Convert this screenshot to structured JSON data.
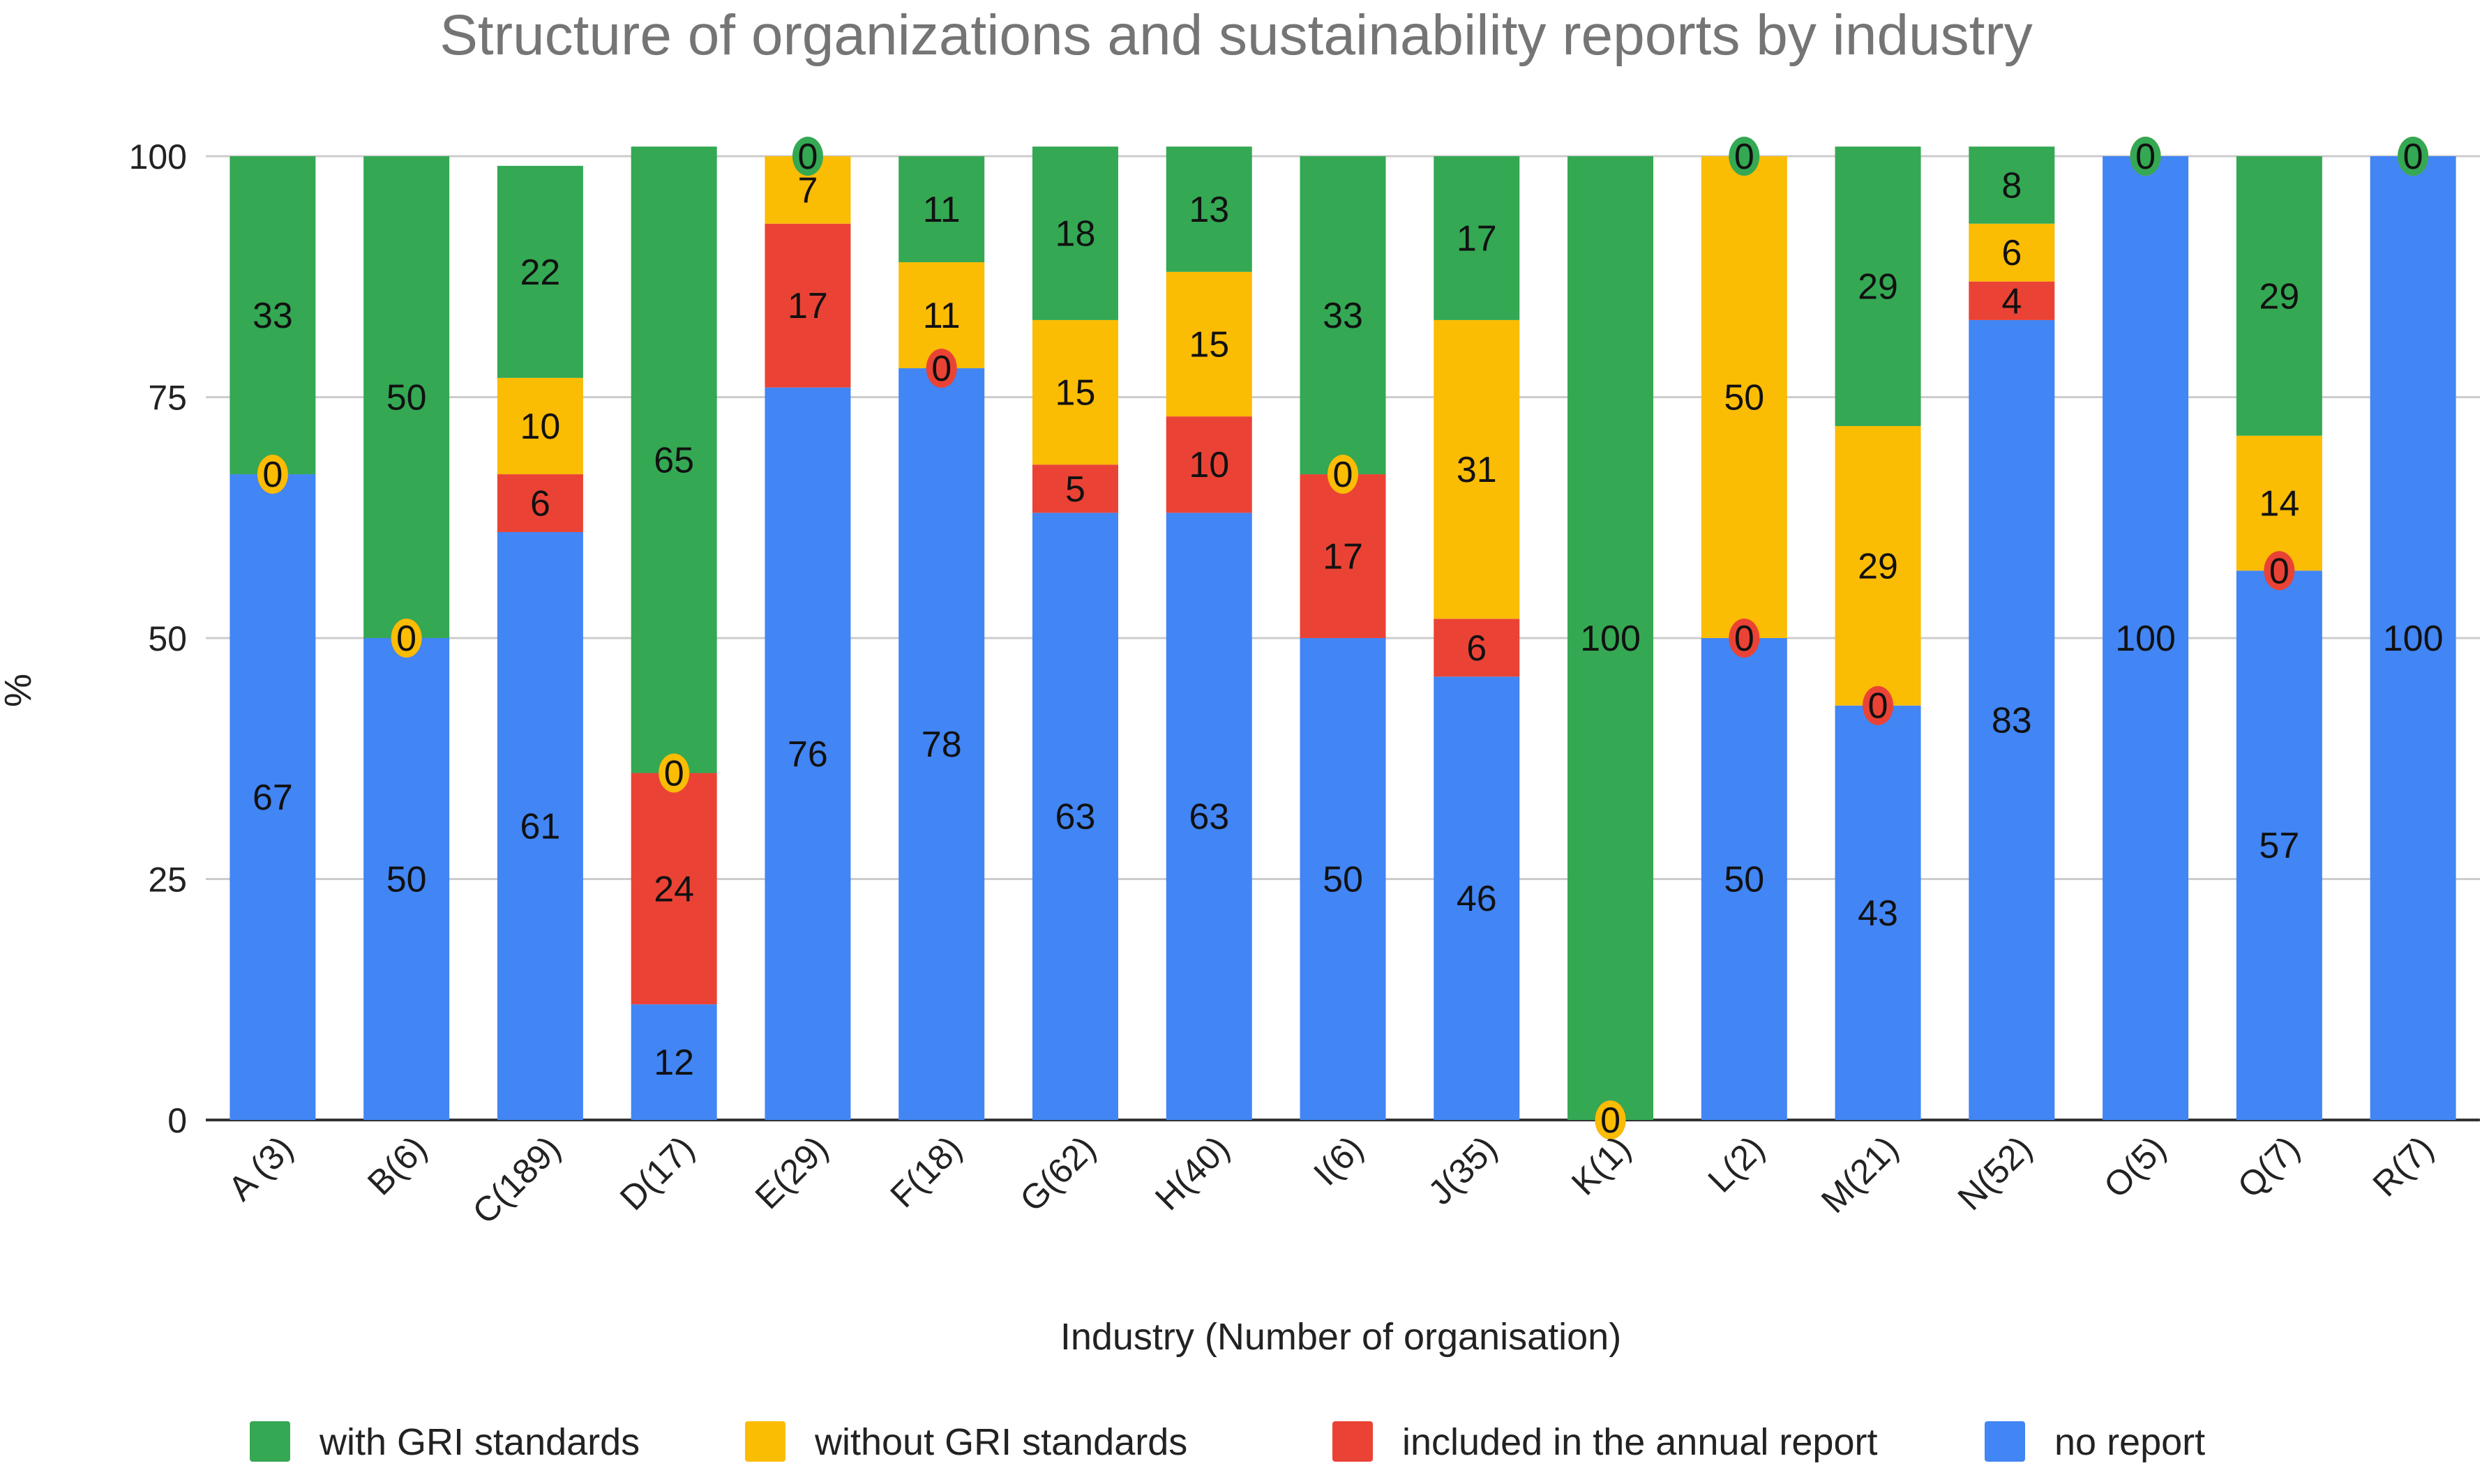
{
  "chart_data": {
    "type": "bar",
    "stacked": true,
    "title": "Structure of organizations and sustainability reports by industry",
    "xlabel": "Industry (Number of organisation)",
    "ylabel": "%",
    "ylim": [
      0,
      100
    ],
    "yticks": [
      "0",
      "25",
      "50",
      "75",
      "100"
    ],
    "grid": true,
    "legend_position": "bottom",
    "categories": [
      "A (3)",
      "B(6)",
      "C(189)",
      "D(17)",
      "E(29)",
      "F(18)",
      "G(62)",
      "H(40)",
      "I(6)",
      "J(35)",
      "K(1)",
      "L(2)",
      "M(21)",
      "N(52)",
      "O(5)",
      "Q(7)",
      "R(7)"
    ],
    "series": [
      {
        "name": "no report",
        "color": "#4285F4",
        "values": [
          67,
          50,
          61,
          12,
          76,
          78,
          63,
          63,
          50,
          46,
          0,
          50,
          43,
          83,
          100,
          57,
          100
        ]
      },
      {
        "name": "included in the annual report",
        "color": "#EA4335",
        "values": [
          0,
          0,
          6,
          24,
          17,
          0,
          5,
          10,
          17,
          6,
          0,
          0,
          0,
          4,
          0,
          0,
          0
        ]
      },
      {
        "name": "without GRI standards",
        "color": "#FBBC04",
        "values": [
          0,
          0,
          10,
          0,
          7,
          11,
          15,
          15,
          0,
          31,
          0,
          50,
          29,
          6,
          0,
          14,
          0
        ]
      },
      {
        "name": "with GRI standards",
        "color": "#34A853",
        "values": [
          33,
          50,
          22,
          65,
          0,
          11,
          18,
          13,
          33,
          17,
          100,
          0,
          29,
          8,
          0,
          29,
          0
        ]
      }
    ],
    "legend_order": [
      "with GRI standards",
      "without GRI standards",
      "included in the annual report",
      "no report"
    ]
  }
}
